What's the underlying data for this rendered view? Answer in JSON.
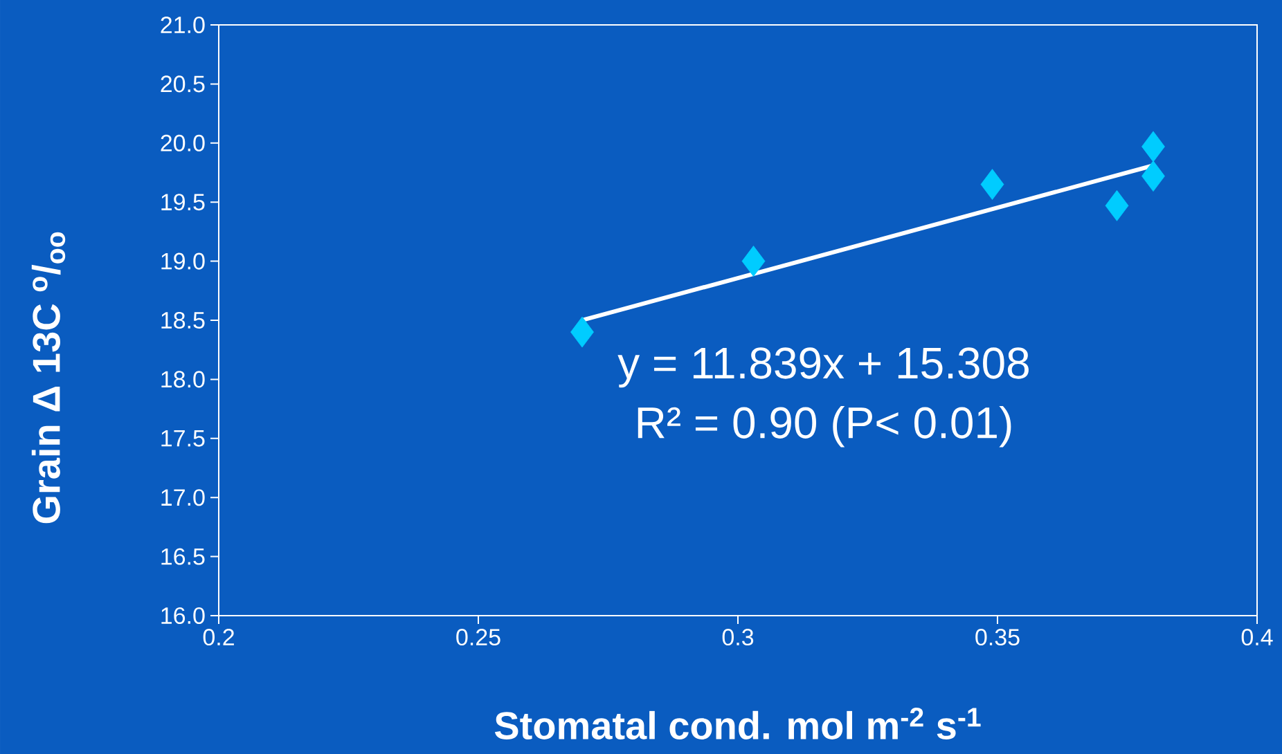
{
  "chart_data": {
    "type": "scatter",
    "xlabel": "**Stomatal cond.  mol m$^{-2}$ s$^{-1}$**",
    "ylabel": "**Grain Δ 13C $^{o}$/$_{oo}$**",
    "xlim": [
      0.2,
      0.4
    ],
    "xticks": [
      0.2,
      0.25,
      0.3,
      0.35,
      0.4
    ],
    "ylim": [
      16,
      21
    ],
    "yticks": [
      {
        "value": 16,
        "label": "16.0"
      },
      {
        "value": 16.5,
        "label": "16.5"
      },
      {
        "value": 17,
        "label": "17.0"
      },
      {
        "value": 17.5,
        "label": "17.5"
      },
      {
        "value": 18,
        "label": "18.0"
      },
      {
        "value": 18.5,
        "label": "18.5"
      },
      {
        "value": 19,
        "label": "19.0"
      },
      {
        "value": 19.5,
        "label": "19.5"
      },
      {
        "value": 20,
        "label": "20.0"
      },
      {
        "value": 20.5,
        "label": "20.5"
      },
      {
        "value": 21,
        "label": "21.0"
      }
    ],
    "series": [
      {
        "color": "#00ccff",
        "marker": "diamond",
        "x": [
          0.27,
          0.303,
          0.349,
          0.373,
          0.38,
          0.38
        ],
        "values": [
          18.4,
          19.0,
          19.65,
          19.47,
          19.97,
          19.72
        ]
      },
      {
        "type": "line",
        "color": "#ffffff",
        "marker": "none",
        "line_style": "solid",
        "x": [
          0.27,
          0.38
        ],
        "values": [
          18.5,
          19.81
        ]
      }
    ],
    "annotations": [
      "y = 11.839x + 15.308",
      "R² = 0.90 (P< 0.01)"
    ]
  }
}
